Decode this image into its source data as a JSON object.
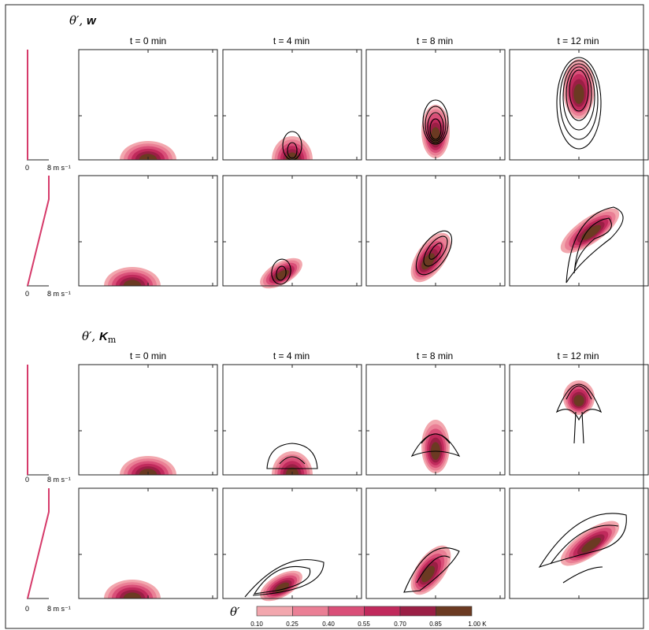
{
  "sections": [
    {
      "title_prefix": "θ′, ",
      "title_var": "w",
      "title_sub": "",
      "columns": [
        "t = 0 min",
        "t = 4 min",
        "t = 8 min",
        "t = 12 min"
      ],
      "rows": [
        {
          "profile": "vertical",
          "profile_labels": [
            "0",
            "8 m s⁻¹"
          ]
        },
        {
          "profile": "sheared",
          "profile_labels": [
            "0",
            "8 m s⁻¹"
          ]
        }
      ]
    },
    {
      "title_prefix": "θ′, ",
      "title_var": "K",
      "title_sub": "m",
      "columns": [
        "t = 0 min",
        "t = 4 min",
        "t = 8 min",
        "t = 12 min"
      ],
      "rows": [
        {
          "profile": "vertical",
          "profile_labels": [
            "0",
            "8 m s⁻¹"
          ]
        },
        {
          "profile": "sheared",
          "profile_labels": [
            "0",
            "8 m s⁻¹"
          ]
        }
      ]
    }
  ],
  "colorbar": {
    "symbol": "θ′",
    "ticks": [
      "0.10",
      "0.25",
      "0.40",
      "0.55",
      "0.70",
      "0.85",
      "1.00 K"
    ],
    "colors": [
      "#f2a7ae",
      "#ea7f95",
      "#d94f78",
      "#c02a5c",
      "#9a1f45",
      "#6b3a22"
    ]
  },
  "colors": {
    "profile": "#d63a6a",
    "contour": "#000000",
    "frame": "#222222"
  }
}
